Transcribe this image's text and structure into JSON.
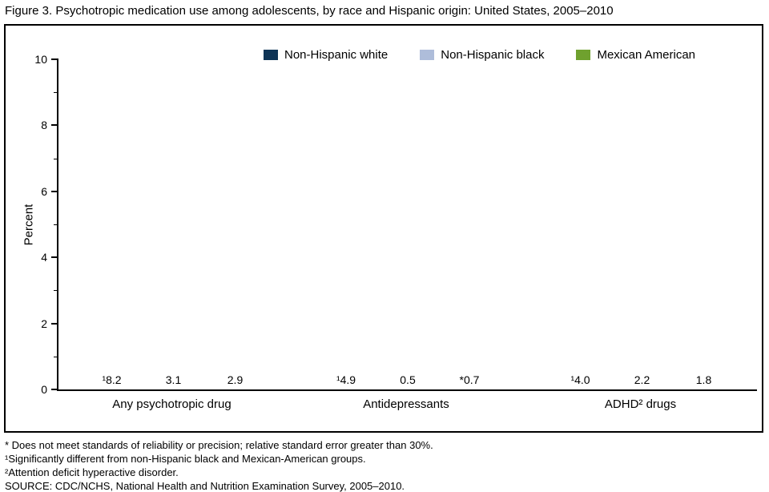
{
  "figure": {
    "title": "Figure 3. Psychotropic medication use among adolescents, by race and Hispanic origin: United States, 2005–2010"
  },
  "chart_data": {
    "type": "bar",
    "title": "Psychotropic medication use among adolescents, by race and Hispanic origin: United States, 2005–2010",
    "ylabel": "Percent",
    "xlabel": "",
    "ylim": [
      0,
      10
    ],
    "yticks_major": [
      0,
      2,
      4,
      6,
      8,
      10
    ],
    "yticks_minor": [
      1,
      3,
      5,
      7,
      9
    ],
    "grid": false,
    "legend_position": "top",
    "categories": [
      "Any psychotropic drug",
      "Antidepressants",
      "ADHD² drugs"
    ],
    "series": [
      {
        "name": "Non-Hispanic white",
        "color": "#0e3456",
        "values": [
          8.2,
          4.9,
          4.0
        ],
        "labels": [
          "¹8.2",
          "¹4.9",
          "¹4.0"
        ]
      },
      {
        "name": "Non-Hispanic black",
        "color": "#aebdda",
        "values": [
          3.1,
          0.5,
          2.2
        ],
        "labels": [
          "3.1",
          "0.5",
          "2.2"
        ]
      },
      {
        "name": "Mexican American",
        "color": "#6fa12e",
        "values": [
          2.9,
          0.7,
          1.8
        ],
        "labels": [
          "2.9",
          "*0.7",
          "1.8"
        ]
      }
    ]
  },
  "footnotes": [
    "* Does not meet standards of reliability or precision; relative standard error greater than 30%.",
    "¹Significantly different from non-Hispanic black and Mexican-American groups.",
    "²Attention deficit hyperactive disorder.",
    "SOURCE: CDC/NCHS, National Health and Nutrition Examination Survey, 2005–2010."
  ]
}
